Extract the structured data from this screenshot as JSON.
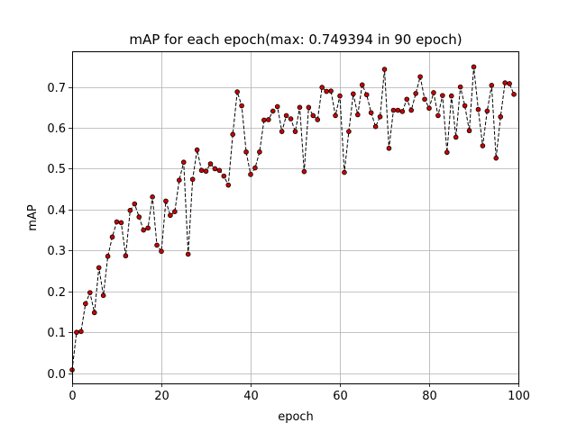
{
  "chart_data": {
    "type": "line",
    "title": "mAP for each epoch(max: 0.749394 in 90 epoch)",
    "xlabel": "epoch",
    "ylabel": "mAP",
    "xlim": [
      0,
      100
    ],
    "ylim": [
      -0.025,
      0.785
    ],
    "xticks": [
      0,
      20,
      40,
      60,
      80,
      100
    ],
    "yticks": [
      0.0,
      0.1,
      0.2,
      0.3,
      0.4,
      0.5,
      0.6,
      0.7
    ],
    "ytick_labels": [
      "0.0",
      "0.1",
      "0.2",
      "0.3",
      "0.4",
      "0.5",
      "0.6",
      "0.7"
    ],
    "grid": true,
    "line_style": "dashed",
    "line_color": "#000000",
    "marker_color": "#cc0000",
    "x": [
      0,
      1,
      2,
      3,
      4,
      5,
      6,
      7,
      8,
      9,
      10,
      11,
      12,
      13,
      14,
      15,
      16,
      17,
      18,
      19,
      20,
      21,
      22,
      23,
      24,
      25,
      26,
      27,
      28,
      29,
      30,
      31,
      32,
      33,
      34,
      35,
      36,
      37,
      38,
      39,
      40,
      41,
      42,
      43,
      44,
      45,
      46,
      47,
      48,
      49,
      50,
      51,
      52,
      53,
      54,
      55,
      56,
      57,
      58,
      59,
      60,
      61,
      62,
      63,
      64,
      65,
      66,
      67,
      68,
      69,
      70,
      71,
      72,
      73,
      74,
      75,
      76,
      77,
      78,
      79,
      80,
      81,
      82,
      83,
      84,
      85,
      86,
      87,
      88,
      89,
      90,
      91,
      92,
      93,
      94,
      95,
      96,
      97,
      98,
      99
    ],
    "series": [
      {
        "values": [
          0.008,
          0.1,
          0.102,
          0.17,
          0.197,
          0.148,
          0.258,
          0.19,
          0.286,
          0.333,
          0.37,
          0.368,
          0.287,
          0.398,
          0.414,
          0.382,
          0.35,
          0.355,
          0.431,
          0.313,
          0.298,
          0.421,
          0.386,
          0.395,
          0.472,
          0.516,
          0.291,
          0.474,
          0.546,
          0.496,
          0.494,
          0.512,
          0.5,
          0.496,
          0.482,
          0.46,
          0.584,
          0.688,
          0.654,
          0.541,
          0.486,
          0.502,
          0.541,
          0.619,
          0.62,
          0.641,
          0.652,
          0.591,
          0.63,
          0.622,
          0.591,
          0.65,
          0.493,
          0.65,
          0.63,
          0.62,
          0.699,
          0.689,
          0.69,
          0.63,
          0.678,
          0.491,
          0.591,
          0.683,
          0.632,
          0.705,
          0.681,
          0.637,
          0.603,
          0.627,
          0.743,
          0.55,
          0.643,
          0.643,
          0.64,
          0.67,
          0.643,
          0.684,
          0.725,
          0.67,
          0.648,
          0.686,
          0.63,
          0.679,
          0.54,
          0.678,
          0.577,
          0.7,
          0.654,
          0.593,
          0.749,
          0.645,
          0.556,
          0.641,
          0.704,
          0.526,
          0.627,
          0.71,
          0.708,
          0.682
        ]
      }
    ]
  }
}
